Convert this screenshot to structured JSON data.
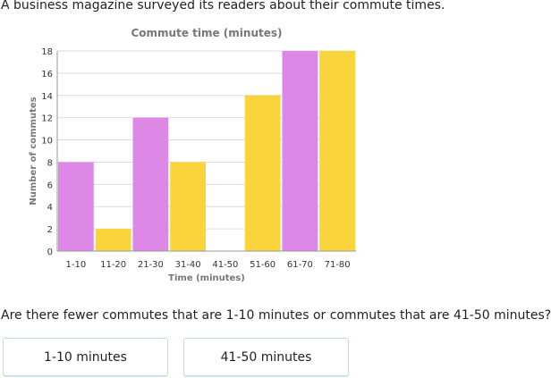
{
  "intro_text": "A business magazine surveyed its readers about their commute times.",
  "question_text": "Are there fewer commutes that are 1-10 minutes or commutes that are 41-50 minutes?",
  "choices": [
    {
      "label": "1-10 minutes"
    },
    {
      "label": "41-50 minutes"
    }
  ],
  "colors": {
    "bar_odd": "#dd88e6",
    "bar_even": "#f9d43a",
    "grid": "#dddddd",
    "axis": "#999999"
  },
  "chart_data": {
    "type": "bar",
    "title": "Commute time (minutes)",
    "xlabel": "Time (minutes)",
    "ylabel": "Number of commutes",
    "categories": [
      "1-10",
      "11-20",
      "21-30",
      "31-40",
      "41-50",
      "51-60",
      "61-70",
      "71-80"
    ],
    "values": [
      8,
      2,
      12,
      8,
      0,
      14,
      18,
      18
    ],
    "ylim": [
      0,
      18
    ],
    "yticks": [
      0,
      2,
      4,
      6,
      8,
      10,
      12,
      14,
      16,
      18
    ],
    "grid": true,
    "legend": "none"
  }
}
